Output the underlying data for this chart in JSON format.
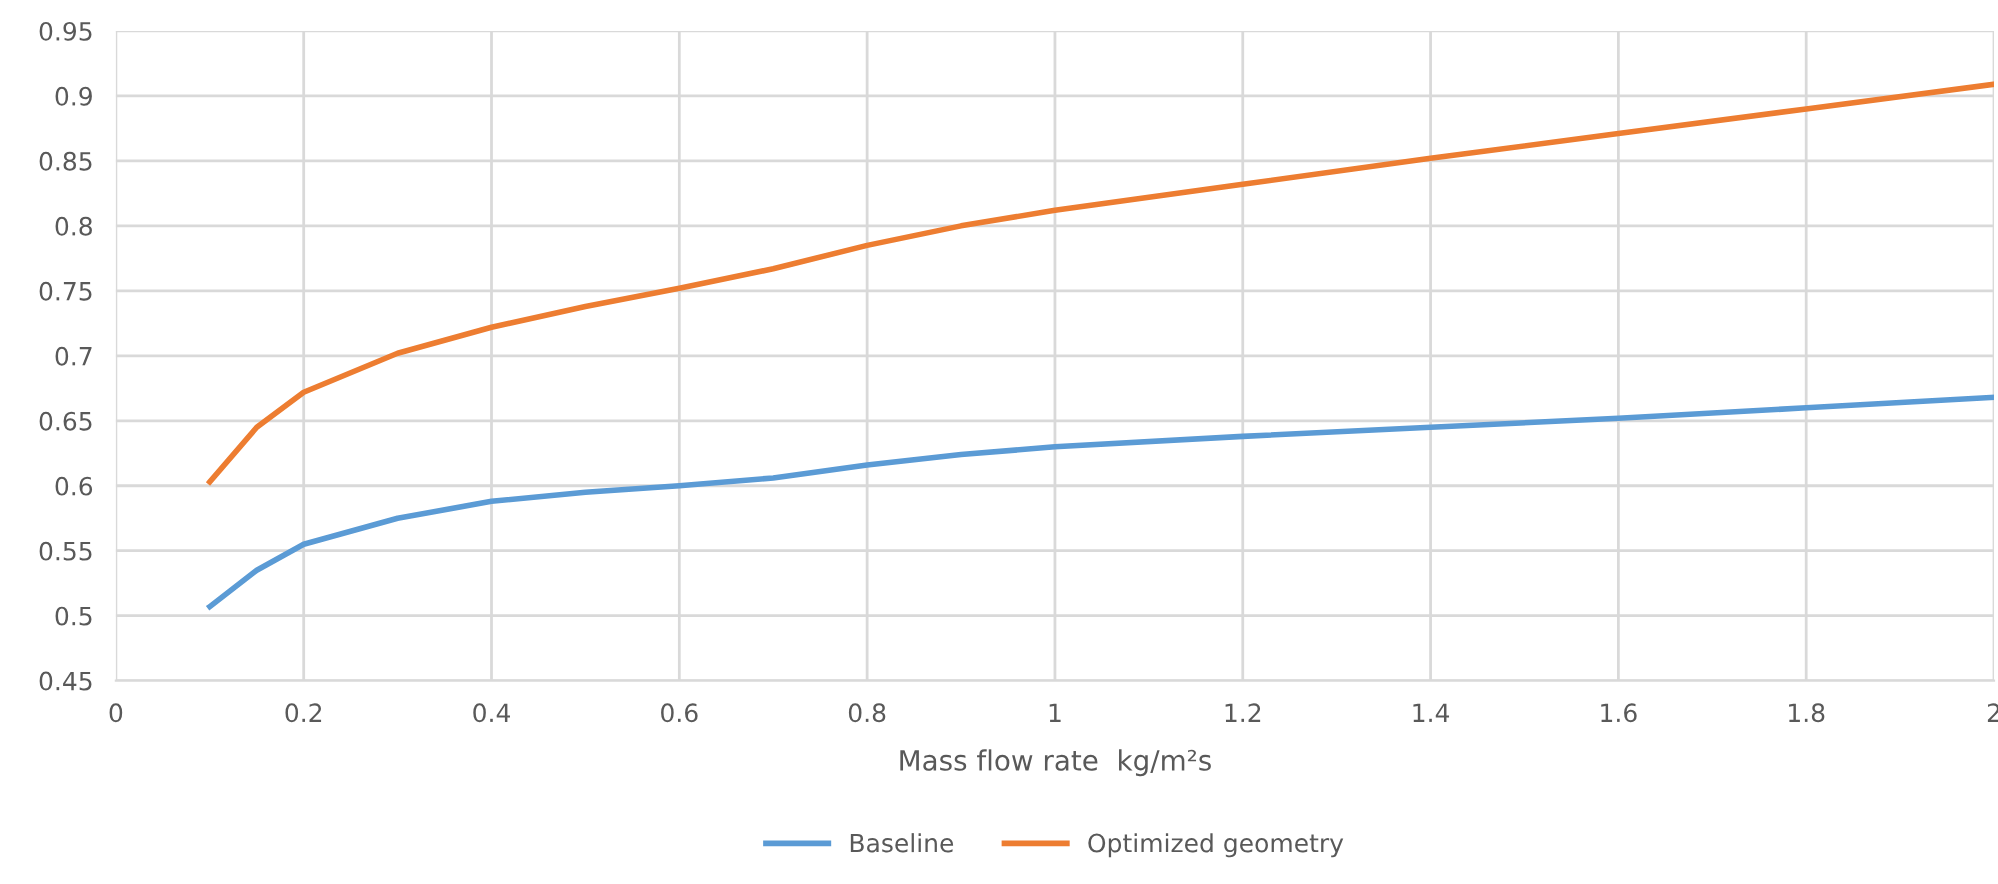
{
  "chart_data": {
    "type": "line",
    "xlabel": "Mass flow rate  kg/m²s",
    "xlim": [
      0,
      2
    ],
    "xticks": [
      0,
      0.2,
      0.4,
      0.6,
      0.8,
      1,
      1.2,
      1.4,
      1.6,
      1.8,
      2
    ],
    "ylim": [
      0.45,
      0.95
    ],
    "yticks": [
      0.45,
      0.5,
      0.55,
      0.6,
      0.65,
      0.7,
      0.75,
      0.8,
      0.85,
      0.9,
      0.95
    ],
    "grid": true,
    "legend": "bottom",
    "marker": "none",
    "line_style": "solid",
    "series": [
      {
        "name": "Baseline",
        "color": "#5b9bd5",
        "x": [
          0.1,
          0.15,
          0.2,
          0.3,
          0.4,
          0.5,
          0.6,
          0.7,
          0.8,
          0.9,
          1.0,
          1.2,
          1.4,
          1.6,
          1.8,
          2.0
        ],
        "values": [
          0.507,
          0.535,
          0.555,
          0.575,
          0.588,
          0.595,
          0.6,
          0.606,
          0.616,
          0.624,
          0.63,
          0.638,
          0.645,
          0.652,
          0.66,
          0.668
        ]
      },
      {
        "name": "Optimized geometry",
        "color": "#ed7d31",
        "x": [
          0.1,
          0.15,
          0.2,
          0.3,
          0.4,
          0.5,
          0.6,
          0.7,
          0.8,
          0.9,
          1.0,
          1.2,
          1.4,
          1.6,
          1.8,
          2.0
        ],
        "values": [
          0.603,
          0.645,
          0.672,
          0.702,
          0.722,
          0.738,
          0.752,
          0.767,
          0.785,
          0.8,
          0.812,
          0.832,
          0.852,
          0.871,
          0.89,
          0.909
        ]
      }
    ]
  }
}
